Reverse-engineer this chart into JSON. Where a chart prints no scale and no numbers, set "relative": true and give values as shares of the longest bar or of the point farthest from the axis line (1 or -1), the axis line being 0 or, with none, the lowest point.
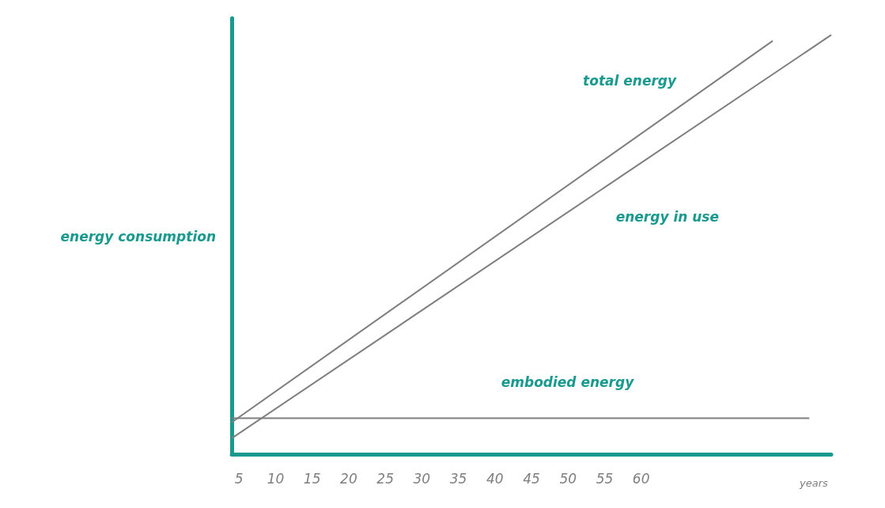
{
  "chart_data": {
    "type": "line",
    "relative": true,
    "ylabel": "energy consumption",
    "xlabel": "years",
    "xlim": [
      4,
      86
    ],
    "xticks": [
      5,
      10,
      15,
      20,
      25,
      30,
      35,
      40,
      45,
      50,
      55,
      60
    ],
    "grid": false,
    "legend": false,
    "marker": "none",
    "line_style": "solid",
    "series": [
      {
        "name": "total energy",
        "color": "#7f7f7f",
        "x": [
          4,
          78
        ],
        "values": [
          0.076,
          0.986
        ]
      },
      {
        "name": "energy in use",
        "color": "#7f7f7f",
        "x": [
          4,
          86
        ],
        "values": [
          0.038,
          1
        ]
      },
      {
        "name": "embodied energy",
        "color": "#7f7f7f",
        "x": [
          4,
          83
        ],
        "values": [
          0.086,
          0.086
        ]
      }
    ]
  }
}
